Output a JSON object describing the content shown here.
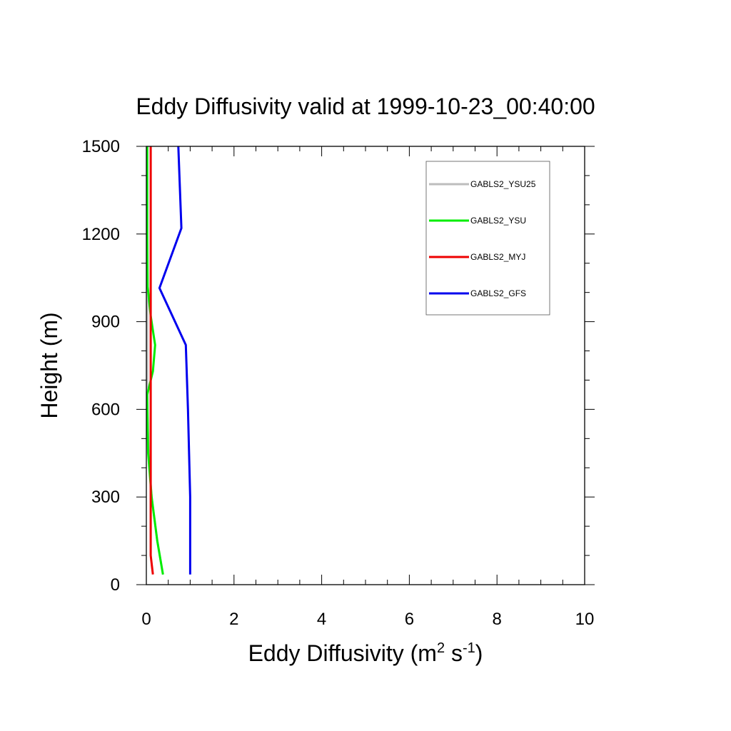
{
  "chart_data": {
    "type": "line",
    "title": "Eddy Diffusivity valid at 1999-10-23_00:40:00",
    "xlabel": {
      "base": "Eddy Diffusivity (m",
      "sup1": "2",
      "mid": " s",
      "sup2": "-1",
      "end": ")"
    },
    "ylabel": "Height (m)",
    "xlim": [
      0,
      10
    ],
    "ylim": [
      0,
      1500
    ],
    "x_ticks": [
      0,
      2,
      4,
      6,
      8,
      10
    ],
    "y_ticks": [
      0,
      300,
      600,
      900,
      1200,
      1500
    ],
    "x_tick_labels": [
      "0",
      "2",
      "4",
      "6",
      "8",
      "10"
    ],
    "y_tick_labels": [
      "0",
      "300",
      "600",
      "900",
      "1200",
      "1500"
    ],
    "legend_position": "top-right",
    "series": [
      {
        "name": "GABLS2_YSU25",
        "color": "#bdbdbd",
        "points": [
          [
            0.38,
            35
          ],
          [
            0.25,
            150
          ],
          [
            0.12,
            300
          ],
          [
            0.05,
            450
          ],
          [
            0.02,
            600
          ],
          [
            0.02,
            800
          ],
          [
            0.02,
            1000
          ],
          [
            0.02,
            1200
          ],
          [
            0.02,
            1500
          ]
        ]
      },
      {
        "name": "GABLS2_YSU",
        "color": "#00ee00",
        "points": [
          [
            0.38,
            35
          ],
          [
            0.25,
            150
          ],
          [
            0.12,
            300
          ],
          [
            0.04,
            450
          ],
          [
            0.02,
            650
          ],
          [
            0.15,
            730
          ],
          [
            0.2,
            820
          ],
          [
            0.1,
            920
          ],
          [
            0.03,
            1020
          ],
          [
            0.02,
            1200
          ],
          [
            0.02,
            1500
          ]
        ]
      },
      {
        "name": "GABLS2_MYJ",
        "color": "#ee0000",
        "points": [
          [
            0.15,
            35
          ],
          [
            0.1,
            100
          ],
          [
            0.1,
            300
          ],
          [
            0.1,
            600
          ],
          [
            0.1,
            900
          ],
          [
            0.1,
            1200
          ],
          [
            0.1,
            1500
          ]
        ]
      },
      {
        "name": "GABLS2_GFS",
        "color": "#0000ee",
        "points": [
          [
            1.0,
            35
          ],
          [
            1.0,
            300
          ],
          [
            0.95,
            600
          ],
          [
            0.9,
            820
          ],
          [
            0.3,
            1015
          ],
          [
            0.8,
            1220
          ],
          [
            0.73,
            1500
          ]
        ]
      }
    ]
  }
}
